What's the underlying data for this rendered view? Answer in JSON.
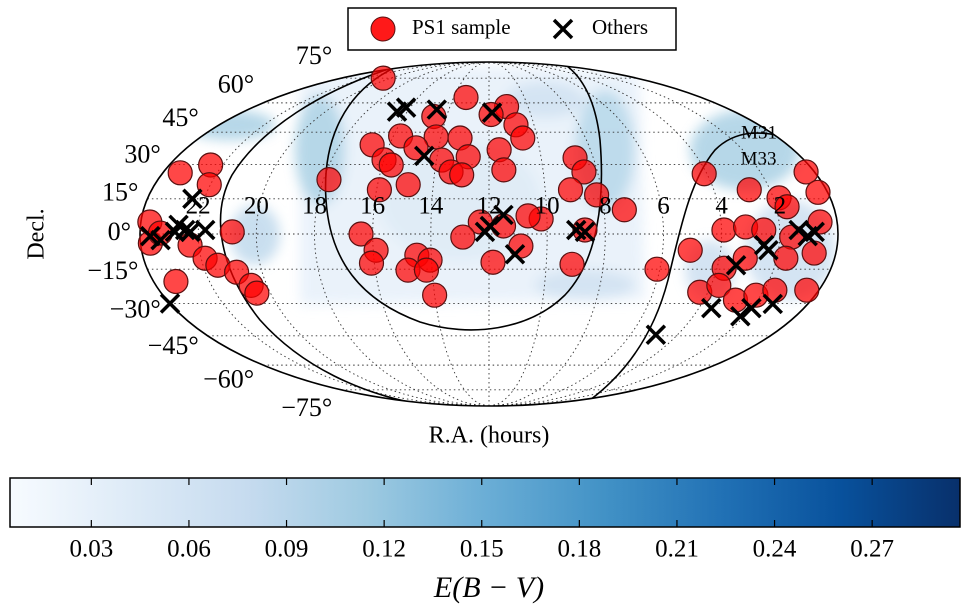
{
  "chart_data": {
    "type": "scatter",
    "projection": "mollweide",
    "xlabel": "R.A. (hours)",
    "ylabel": "Decl.",
    "xlim": [
      0,
      24
    ],
    "ylim": [
      -90,
      90
    ],
    "xticks": [
      2,
      4,
      6,
      8,
      10,
      12,
      14,
      16,
      18,
      20,
      22
    ],
    "yticks": [
      {
        "value": -75,
        "label": "−75°"
      },
      {
        "value": -60,
        "label": "−60°"
      },
      {
        "value": -45,
        "label": "−45°"
      },
      {
        "value": -30,
        "label": "−30°"
      },
      {
        "value": -15,
        "label": "−15°"
      },
      {
        "value": 0,
        "label": "0°"
      },
      {
        "value": 15,
        "label": "15°"
      },
      {
        "value": 30,
        "label": "30°"
      },
      {
        "value": 45,
        "label": "45°"
      },
      {
        "value": 60,
        "label": "60°"
      },
      {
        "value": 75,
        "label": "75°"
      }
    ],
    "grid": true,
    "legend": "top",
    "series": [
      {
        "name": "PS1 sample",
        "color": "#ff0000",
        "marker": "circle",
        "x": [
          20.6,
          13.3,
          11.1,
          14.6,
          10.8,
          11.9,
          15.7,
          14.2,
          13.2,
          16.7,
          14.9,
          16.0,
          13.8,
          12.8,
          11.6,
          8.7,
          17.8,
          15.9,
          14.9,
          13.4,
          13.0,
          11.45,
          8.5,
          9.1,
          8.2,
          7.3,
          12.3,
          11.5,
          12.9,
          16.4,
          15.9,
          16.1,
          14.5,
          14.05,
          14.85,
          14.2,
          14.0,
          11.86,
          10.2,
          10.65,
          9.1,
          8.7,
          6.1,
          4.1,
          2.74,
          1.8,
          0.31,
          0.34,
          3.92,
          3.17,
          2.55,
          1.62,
          0.59,
          1.59,
          0.75,
          5.05,
          3.75,
          3.1,
          1.69,
          4.3,
          3.72,
          2.82,
          2.18,
          1.6,
          0.44,
          23.36,
          22.45,
          22.04,
          23.69,
          23.66,
          23.3,
          20.83,
          22.3,
          21.86,
          21.48,
          20.9,
          20.57,
          20.5,
          23.2,
          10.6,
          15.67,
          10.9
        ],
        "values": [
          75,
          63,
          58,
          52.8,
          48.6,
          53.8,
          43.2,
          42.7,
          42.2,
          39,
          37.6,
          32.1,
          32,
          33.5,
          36.7,
          33,
          23.3,
          18.9,
          21.1,
          26.7,
          25.4,
          27.6,
          26.7,
          18.9,
          16.7,
          10.3,
          5.1,
          3.4,
          -1.3,
          0,
          -6.9,
          -12.4,
          -9,
          -11.1,
          -15.4,
          -15.4,
          -26.3,
          -12,
          6.4,
          7.7,
          -12.9,
          1.7,
          -15,
          25.9,
          18.9,
          15.4,
          26.7,
          17.8,
          1.7,
          3,
          1.7,
          11.6,
          5.1,
          -1.3,
          -8.1,
          -6.9,
          -14.6,
          -10.3,
          -10.3,
          -25,
          -22,
          -28.5,
          -26.3,
          -24.1,
          -24.1,
          26.3,
          29.8,
          21.1,
          5.1,
          -3.9,
          0.4,
          0.9,
          -4.7,
          -10.3,
          -13.3,
          -16.3,
          -22,
          -25.4,
          -20.3,
          42.2,
          29.8,
          -5.1
        ]
      },
      {
        "name": "Others",
        "color": "#000000",
        "marker": "x",
        "x": [
          16.5,
          16.2,
          14.6,
          11.85,
          14.5,
          11.5,
          11.97,
          12.14,
          11.1,
          9.0,
          8.7,
          22.42,
          22.69,
          23.3,
          23.65,
          22.8,
          22.45,
          22.27,
          21.76,
          23.99,
          4.92,
          3.36,
          2.52,
          2.35,
          1.35,
          1.04,
          0.8,
          3.53,
          2.16,
          2.0,
          1.32
        ],
        "values": [
          55.3,
          57.4,
          56.4,
          54.8,
          33.9,
          8.1,
          3.4,
          0.9,
          -8.6,
          1.7,
          0.9,
          15,
          3.9,
          -2.6,
          -0.9,
          0.9,
          1.7,
          0.9,
          1.7,
          -30,
          -44.5,
          -13.3,
          -4.7,
          -6.9,
          1.7,
          -0.9,
          0.9,
          -32.1,
          -35.8,
          -32.1,
          -30.2
        ]
      }
    ],
    "annotations": [
      {
        "text": "M31",
        "x": 1.36,
        "y": 44
      },
      {
        "text": "M33",
        "x": 2.42,
        "y": 32
      }
    ],
    "colorbar": {
      "label": "E(B − V)",
      "cmap": [
        "#f7fbff",
        "#deebf7",
        "#c6dbef",
        "#9ecae1",
        "#6baed6",
        "#4292c6",
        "#2171b5",
        "#08519c",
        "#08306b"
      ],
      "clim": [
        0.005,
        0.297
      ],
      "ticks": [
        0.03,
        0.06,
        0.09,
        0.12,
        0.15,
        0.18,
        0.21,
        0.24,
        0.27
      ]
    }
  }
}
